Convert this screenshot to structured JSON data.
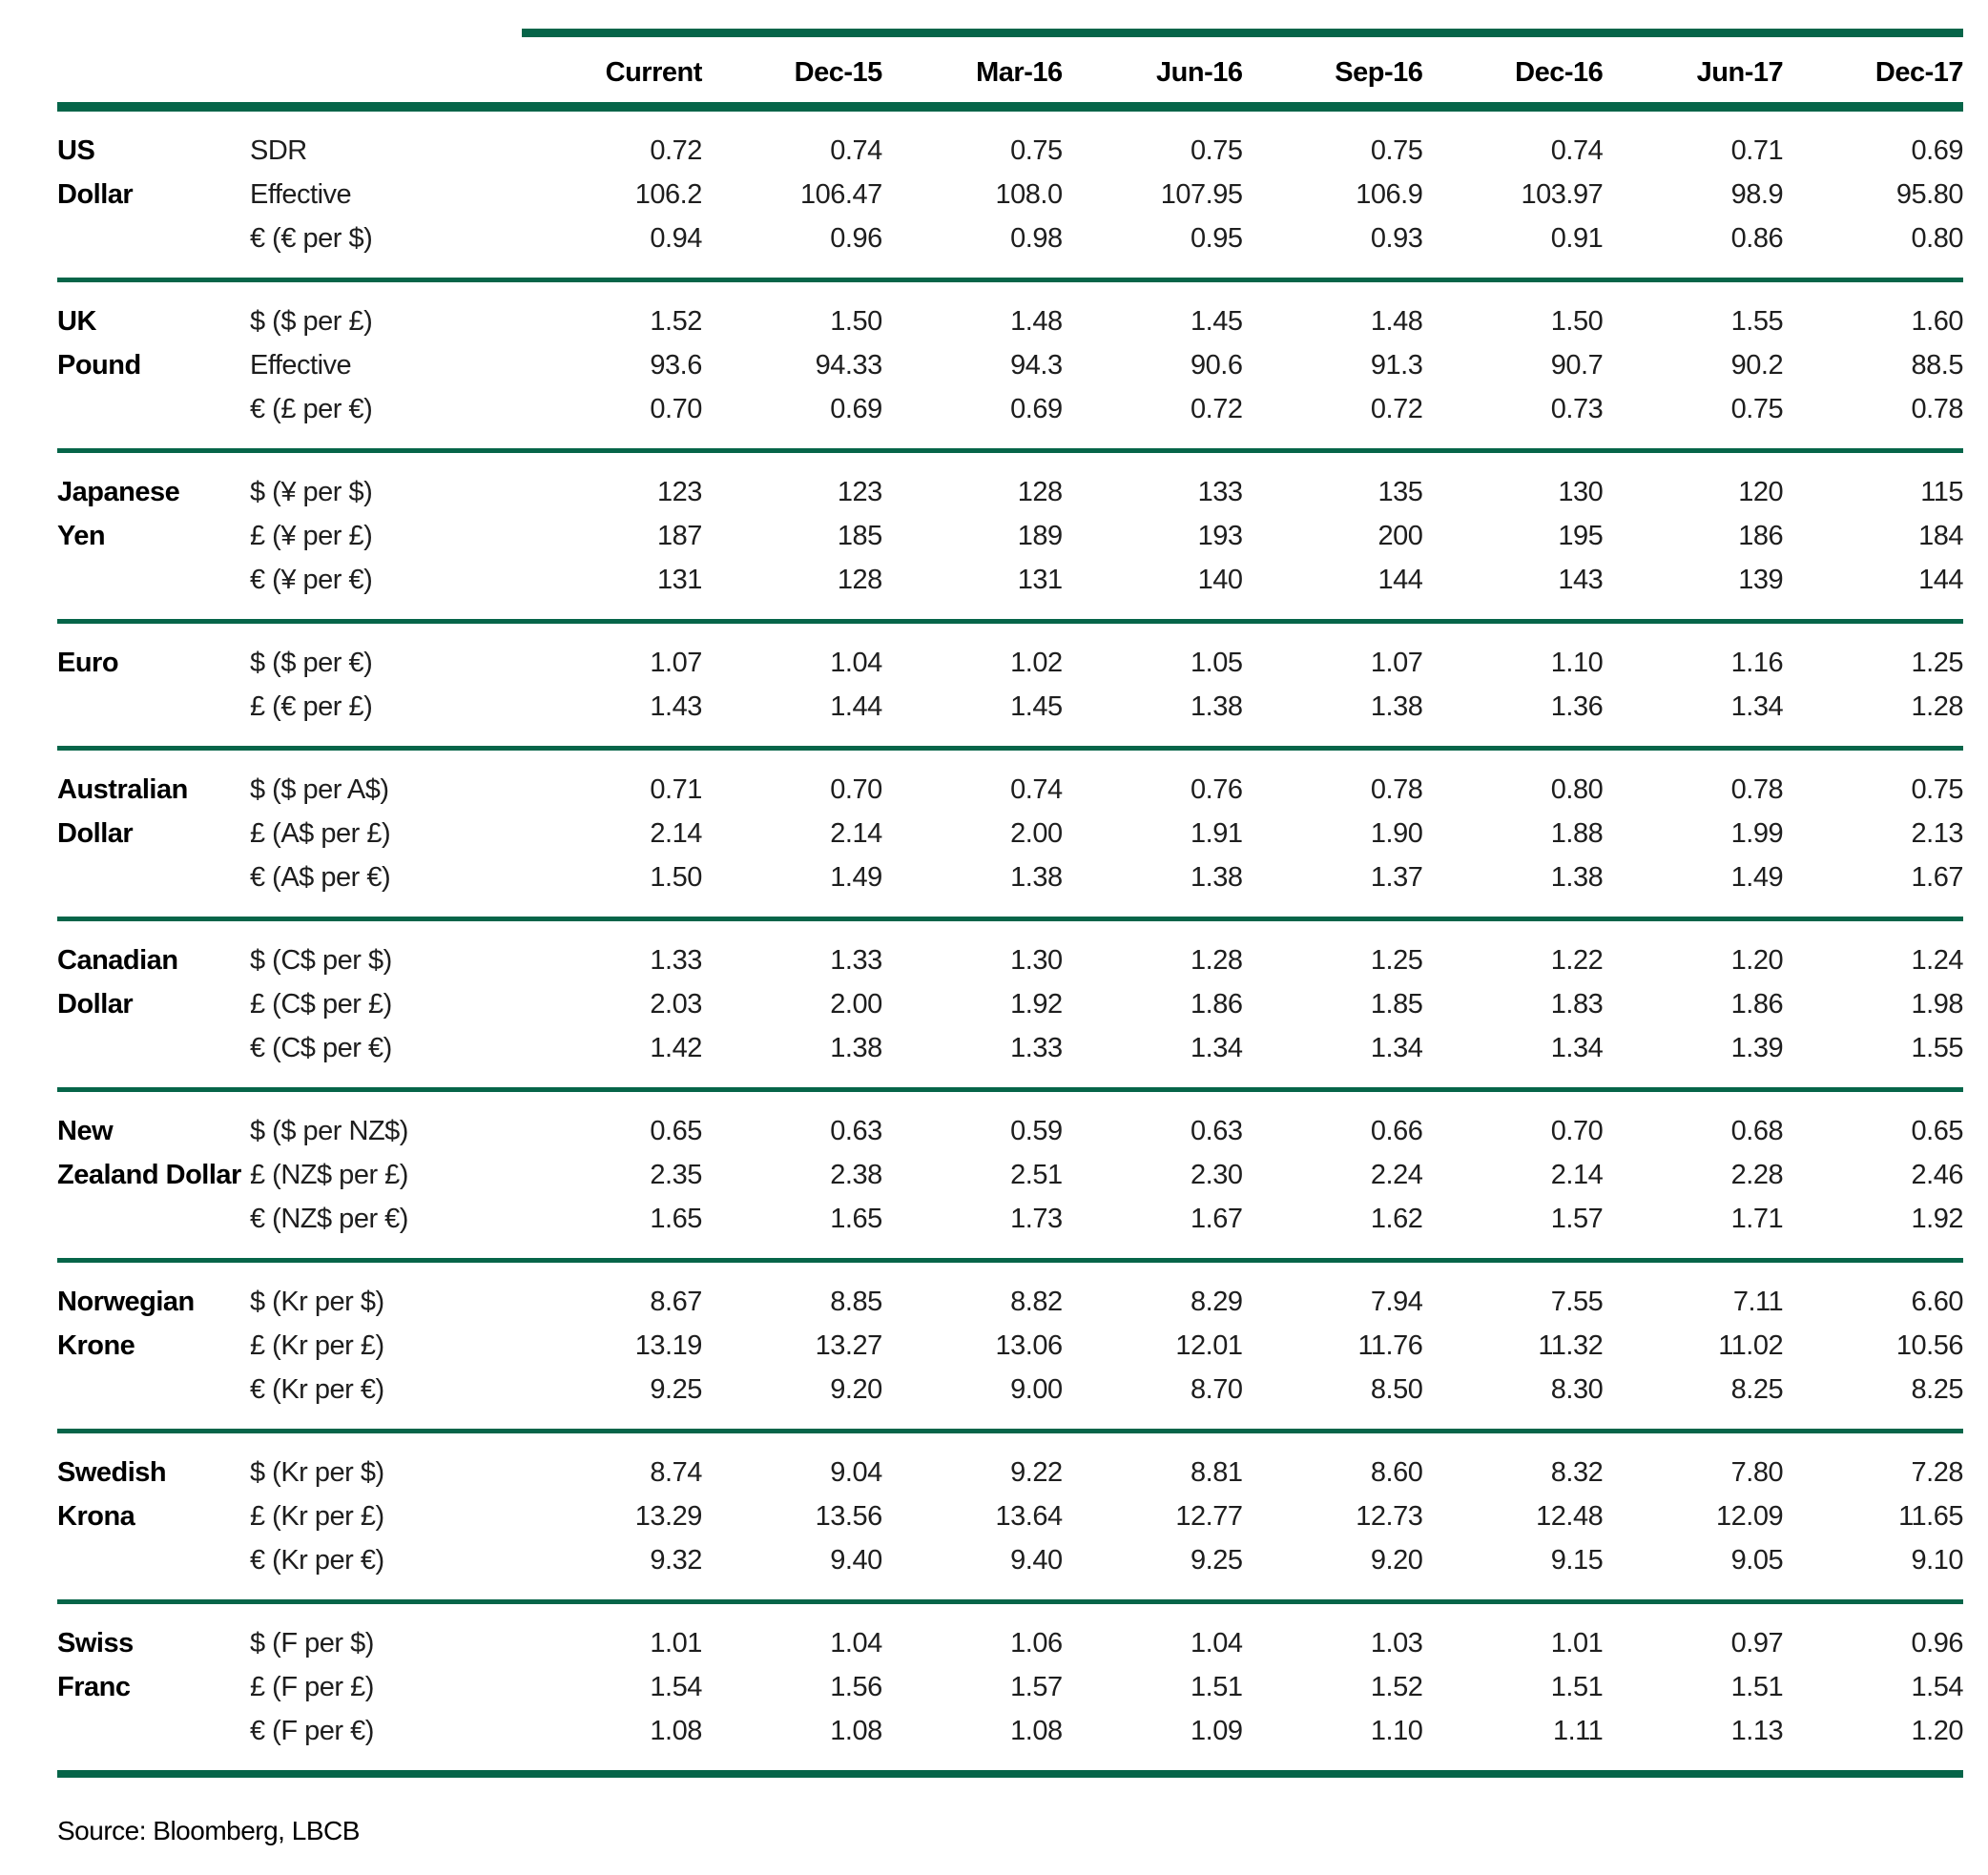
{
  "page": {
    "accent_color": "#066549",
    "source_note": "Source: Bloomberg, LBCB"
  },
  "table": {
    "columns": [
      "Current",
      "Dec-15",
      "Mar-16",
      "Jun-16",
      "Sep-16",
      "Dec-16",
      "Jun-17",
      "Dec-17"
    ],
    "groups": [
      {
        "currency": "US Dollar",
        "label_lines": [
          "US",
          "Dollar"
        ],
        "rows": [
          {
            "label": "SDR",
            "values": [
              "0.72",
              "0.74",
              "0.75",
              "0.75",
              "0.75",
              "0.74",
              "0.71",
              "0.69"
            ]
          },
          {
            "label": "Effective",
            "values": [
              "106.2",
              "106.47",
              "108.0",
              "107.95",
              "106.9",
              "103.97",
              "98.9",
              "95.80"
            ]
          },
          {
            "label": "€ (€ per $)",
            "values": [
              "0.94",
              "0.96",
              "0.98",
              "0.95",
              "0.93",
              "0.91",
              "0.86",
              "0.80"
            ]
          }
        ]
      },
      {
        "currency": "UK Pound",
        "label_lines": [
          "UK",
          "Pound"
        ],
        "rows": [
          {
            "label": "$ ($ per £)",
            "values": [
              "1.52",
              "1.50",
              "1.48",
              "1.45",
              "1.48",
              "1.50",
              "1.55",
              "1.60"
            ]
          },
          {
            "label": "Effective",
            "values": [
              "93.6",
              "94.33",
              "94.3",
              "90.6",
              "91.3",
              "90.7",
              "90.2",
              "88.5"
            ]
          },
          {
            "label": "€ (£ per €)",
            "values": [
              "0.70",
              "0.69",
              "0.69",
              "0.72",
              "0.72",
              "0.73",
              "0.75",
              "0.78"
            ]
          }
        ]
      },
      {
        "currency": "Japanese Yen",
        "label_lines": [
          "Japanese",
          "Yen"
        ],
        "rows": [
          {
            "label": "$ (¥ per $)",
            "values": [
              "123",
              "123",
              "128",
              "133",
              "135",
              "130",
              "120",
              "115"
            ]
          },
          {
            "label": "£ (¥ per £)",
            "values": [
              "187",
              "185",
              "189",
              "193",
              "200",
              "195",
              "186",
              "184"
            ]
          },
          {
            "label": "€ (¥ per €)",
            "values": [
              "131",
              "128",
              "131",
              "140",
              "144",
              "143",
              "139",
              "144"
            ]
          }
        ]
      },
      {
        "currency": "Euro",
        "label_lines": [
          "Euro"
        ],
        "rows": [
          {
            "label": "$ ($ per €)",
            "values": [
              "1.07",
              "1.04",
              "1.02",
              "1.05",
              "1.07",
              "1.10",
              "1.16",
              "1.25"
            ]
          },
          {
            "label": "£ (€ per £)",
            "values": [
              "1.43",
              "1.44",
              "1.45",
              "1.38",
              "1.38",
              "1.36",
              "1.34",
              "1.28"
            ]
          }
        ]
      },
      {
        "currency": "Australian Dollar",
        "label_lines": [
          "Australian",
          "Dollar"
        ],
        "rows": [
          {
            "label": "$ ($ per A$)",
            "values": [
              "0.71",
              "0.70",
              "0.74",
              "0.76",
              "0.78",
              "0.80",
              "0.78",
              "0.75"
            ]
          },
          {
            "label": "£ (A$ per £)",
            "values": [
              "2.14",
              "2.14",
              "2.00",
              "1.91",
              "1.90",
              "1.88",
              "1.99",
              "2.13"
            ]
          },
          {
            "label": "€ (A$ per €)",
            "values": [
              "1.50",
              "1.49",
              "1.38",
              "1.38",
              "1.37",
              "1.38",
              "1.49",
              "1.67"
            ]
          }
        ]
      },
      {
        "currency": "Canadian Dollar",
        "label_lines": [
          "Canadian",
          "Dollar"
        ],
        "rows": [
          {
            "label": "$ (C$ per $)",
            "values": [
              "1.33",
              "1.33",
              "1.30",
              "1.28",
              "1.25",
              "1.22",
              "1.20",
              "1.24"
            ]
          },
          {
            "label": "£ (C$ per £)",
            "values": [
              "2.03",
              "2.00",
              "1.92",
              "1.86",
              "1.85",
              "1.83",
              "1.86",
              "1.98"
            ]
          },
          {
            "label": "€ (C$ per €)",
            "values": [
              "1.42",
              "1.38",
              "1.33",
              "1.34",
              "1.34",
              "1.34",
              "1.39",
              "1.55"
            ]
          }
        ]
      },
      {
        "currency": "New Zealand Dollar",
        "label_lines": [
          "New",
          "Zealand Dollar"
        ],
        "rows": [
          {
            "label": "$ ($ per NZ$)",
            "values": [
              "0.65",
              "0.63",
              "0.59",
              "0.63",
              "0.66",
              "0.70",
              "0.68",
              "0.65"
            ]
          },
          {
            "label": "£ (NZ$ per £)",
            "values": [
              "2.35",
              "2.38",
              "2.51",
              "2.30",
              "2.24",
              "2.14",
              "2.28",
              "2.46"
            ]
          },
          {
            "label": "€ (NZ$ per €)",
            "values": [
              "1.65",
              "1.65",
              "1.73",
              "1.67",
              "1.62",
              "1.57",
              "1.71",
              "1.92"
            ]
          }
        ]
      },
      {
        "currency": "Norwegian Krone",
        "label_lines": [
          "Norwegian",
          "Krone"
        ],
        "rows": [
          {
            "label": "$ (Kr per $)",
            "values": [
              "8.67",
              "8.85",
              "8.82",
              "8.29",
              "7.94",
              "7.55",
              "7.11",
              "6.60"
            ]
          },
          {
            "label": "£ (Kr per £)",
            "values": [
              "13.19",
              "13.27",
              "13.06",
              "12.01",
              "11.76",
              "11.32",
              "11.02",
              "10.56"
            ]
          },
          {
            "label": "€ (Kr per €)",
            "values": [
              "9.25",
              "9.20",
              "9.00",
              "8.70",
              "8.50",
              "8.30",
              "8.25",
              "8.25"
            ]
          }
        ]
      },
      {
        "currency": "Swedish Krona",
        "label_lines": [
          "Swedish",
          "Krona"
        ],
        "rows": [
          {
            "label": "$ (Kr per $)",
            "values": [
              "8.74",
              "9.04",
              "9.22",
              "8.81",
              "8.60",
              "8.32",
              "7.80",
              "7.28"
            ]
          },
          {
            "label": "£ (Kr per £)",
            "values": [
              "13.29",
              "13.56",
              "13.64",
              "12.77",
              "12.73",
              "12.48",
              "12.09",
              "11.65"
            ]
          },
          {
            "label": "€ (Kr per €)",
            "values": [
              "9.32",
              "9.40",
              "9.40",
              "9.25",
              "9.20",
              "9.15",
              "9.05",
              "9.10"
            ]
          }
        ]
      },
      {
        "currency": "Swiss Franc",
        "label_lines": [
          "Swiss",
          "Franc"
        ],
        "rows": [
          {
            "label": "$ (F per $)",
            "values": [
              "1.01",
              "1.04",
              "1.06",
              "1.04",
              "1.03",
              "1.01",
              "0.97",
              "0.96"
            ]
          },
          {
            "label": "£ (F per £)",
            "values": [
              "1.54",
              "1.56",
              "1.57",
              "1.51",
              "1.52",
              "1.51",
              "1.51",
              "1.54"
            ]
          },
          {
            "label": "€ (F per €)",
            "values": [
              "1.08",
              "1.08",
              "1.08",
              "1.09",
              "1.10",
              "1.11",
              "1.13",
              "1.20"
            ]
          }
        ]
      }
    ]
  }
}
